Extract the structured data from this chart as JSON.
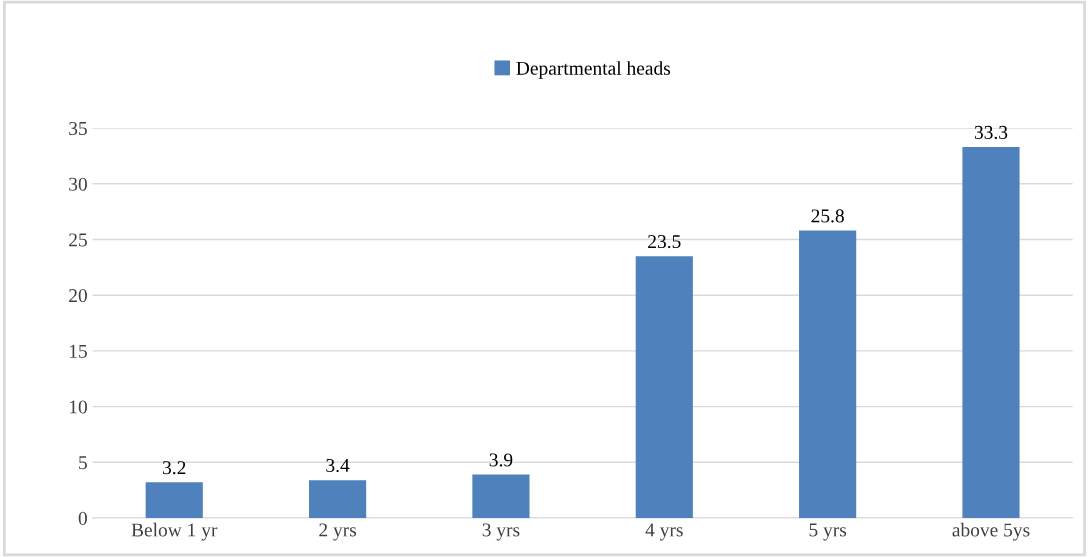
{
  "chart_data": {
    "type": "bar",
    "categories": [
      "Below 1 yr",
      "2 yrs",
      "3 yrs",
      "4 yrs",
      "5 yrs",
      "above 5ys"
    ],
    "series": [
      {
        "name": "Departmental heads",
        "color": "#4f81bd",
        "values": [
          3.2,
          3.4,
          3.9,
          23.5,
          25.8,
          33.3
        ]
      }
    ],
    "ylim": [
      0,
      35
    ],
    "yticks": [
      0,
      5,
      10,
      15,
      20,
      25,
      30,
      35
    ],
    "grid": "y",
    "legend": "top",
    "data_labels": true
  }
}
